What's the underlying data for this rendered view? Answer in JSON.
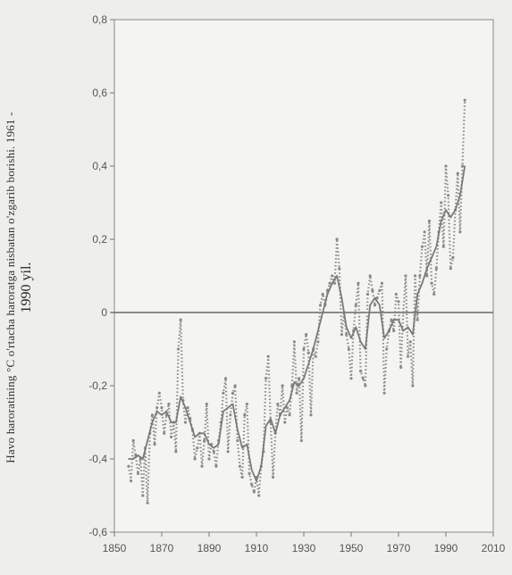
{
  "chart_data": {
    "type": "line",
    "title": "",
    "ylabel_line1": "Havo haroratining  °C o'rtacha haroratga nisbatan o'zgarib borishi. 1961 -",
    "ylabel_line2": "1990 yil.",
    "xlabel": "",
    "xlim": [
      1850,
      2010
    ],
    "ylim": [
      -0.6,
      0.8
    ],
    "x_ticks": [
      1850,
      1870,
      1890,
      1910,
      1930,
      1950,
      1970,
      1990,
      2010
    ],
    "x_tick_labels": [
      "1850",
      "1870",
      "1890",
      "1910",
      "1930",
      "1950",
      "1970",
      "1990",
      "2010"
    ],
    "y_ticks": [
      -0.6,
      -0.4,
      -0.2,
      0,
      0.2,
      0.4,
      0.6,
      0.8
    ],
    "y_tick_labels": [
      "-0,6",
      "-0,4",
      "-0,2",
      "0",
      "0,2",
      "0,4",
      "0,6",
      "0,8"
    ],
    "zero_line": 0,
    "grid": false,
    "series": [
      {
        "style": "dotted",
        "color": "#8a8a8a",
        "x": [
          1856,
          1857,
          1858,
          1859,
          1860,
          1861,
          1862,
          1863,
          1864,
          1865,
          1866,
          1867,
          1868,
          1869,
          1870,
          1871,
          1872,
          1873,
          1874,
          1875,
          1876,
          1877,
          1878,
          1879,
          1880,
          1881,
          1882,
          1883,
          1884,
          1885,
          1886,
          1887,
          1888,
          1889,
          1890,
          1891,
          1892,
          1893,
          1894,
          1895,
          1896,
          1897,
          1898,
          1899,
          1900,
          1901,
          1902,
          1903,
          1904,
          1905,
          1906,
          1907,
          1908,
          1909,
          1910,
          1911,
          1912,
          1913,
          1914,
          1915,
          1916,
          1917,
          1918,
          1919,
          1920,
          1921,
          1922,
          1923,
          1924,
          1925,
          1926,
          1927,
          1928,
          1929,
          1930,
          1931,
          1932,
          1933,
          1934,
          1935,
          1936,
          1937,
          1938,
          1939,
          1940,
          1941,
          1942,
          1943,
          1944,
          1945,
          1946,
          1947,
          1948,
          1949,
          1950,
          1951,
          1952,
          1953,
          1954,
          1955,
          1956,
          1957,
          1958,
          1959,
          1960,
          1961,
          1962,
          1963,
          1964,
          1965,
          1966,
          1967,
          1968,
          1969,
          1970,
          1971,
          1972,
          1973,
          1974,
          1975,
          1976,
          1977,
          1978,
          1979,
          1980,
          1981,
          1982,
          1983,
          1984,
          1985,
          1986,
          1987,
          1988,
          1989,
          1990,
          1991,
          1992,
          1993,
          1994,
          1995,
          1996,
          1997,
          1998
        ],
        "y": [
          -0.42,
          -0.46,
          -0.35,
          -0.39,
          -0.44,
          -0.4,
          -0.5,
          -0.37,
          -0.52,
          -0.33,
          -0.28,
          -0.36,
          -0.26,
          -0.22,
          -0.26,
          -0.33,
          -0.28,
          -0.25,
          -0.34,
          -0.3,
          -0.38,
          -0.1,
          -0.02,
          -0.24,
          -0.3,
          -0.26,
          -0.29,
          -0.32,
          -0.4,
          -0.37,
          -0.33,
          -0.42,
          -0.35,
          -0.25,
          -0.4,
          -0.36,
          -0.38,
          -0.42,
          -0.35,
          -0.3,
          -0.22,
          -0.18,
          -0.38,
          -0.28,
          -0.22,
          -0.2,
          -0.35,
          -0.42,
          -0.45,
          -0.28,
          -0.25,
          -0.44,
          -0.47,
          -0.49,
          -0.45,
          -0.5,
          -0.42,
          -0.38,
          -0.18,
          -0.12,
          -0.3,
          -0.45,
          -0.33,
          -0.25,
          -0.28,
          -0.2,
          -0.3,
          -0.26,
          -0.28,
          -0.2,
          -0.08,
          -0.22,
          -0.18,
          -0.35,
          -0.1,
          -0.06,
          -0.11,
          -0.28,
          -0.1,
          -0.12,
          -0.08,
          0.02,
          0.05,
          0.02,
          0.06,
          0.08,
          0.1,
          0.08,
          0.2,
          0.12,
          -0.06,
          0.0,
          -0.06,
          -0.1,
          -0.18,
          -0.05,
          0.02,
          0.08,
          -0.16,
          -0.18,
          -0.2,
          0.05,
          0.1,
          0.06,
          0.02,
          0.04,
          0.06,
          0.08,
          -0.22,
          -0.1,
          -0.05,
          -0.02,
          -0.05,
          0.05,
          0.03,
          -0.15,
          0.0,
          0.1,
          -0.12,
          -0.08,
          -0.2,
          0.1,
          -0.02,
          0.1,
          0.18,
          0.22,
          0.1,
          0.25,
          0.08,
          0.05,
          0.12,
          0.22,
          0.3,
          0.18,
          0.4,
          0.32,
          0.12,
          0.15,
          0.28,
          0.38,
          0.22,
          0.4,
          0.58
        ]
      },
      {
        "style": "solid",
        "color": "#7a7a7a",
        "x": [
          1856,
          1858,
          1860,
          1862,
          1864,
          1866,
          1868,
          1870,
          1872,
          1874,
          1876,
          1878,
          1880,
          1882,
          1884,
          1886,
          1888,
          1890,
          1892,
          1894,
          1896,
          1898,
          1900,
          1902,
          1904,
          1906,
          1908,
          1910,
          1912,
          1914,
          1916,
          1918,
          1920,
          1922,
          1924,
          1926,
          1928,
          1930,
          1932,
          1934,
          1936,
          1938,
          1940,
          1942,
          1944,
          1946,
          1948,
          1950,
          1952,
          1954,
          1956,
          1958,
          1960,
          1962,
          1964,
          1966,
          1968,
          1970,
          1972,
          1974,
          1976,
          1978,
          1980,
          1982,
          1984,
          1986,
          1988,
          1990,
          1992,
          1994,
          1996,
          1998
        ],
        "y": [
          -0.4,
          -0.4,
          -0.39,
          -0.4,
          -0.35,
          -0.3,
          -0.27,
          -0.28,
          -0.27,
          -0.3,
          -0.3,
          -0.23,
          -0.26,
          -0.3,
          -0.34,
          -0.33,
          -0.33,
          -0.36,
          -0.37,
          -0.36,
          -0.27,
          -0.26,
          -0.25,
          -0.32,
          -0.37,
          -0.36,
          -0.43,
          -0.46,
          -0.42,
          -0.31,
          -0.29,
          -0.33,
          -0.28,
          -0.26,
          -0.24,
          -0.19,
          -0.2,
          -0.18,
          -0.14,
          -0.1,
          -0.05,
          0.0,
          0.05,
          0.08,
          0.1,
          0.04,
          -0.04,
          -0.07,
          -0.04,
          -0.08,
          -0.1,
          0.02,
          0.04,
          0.02,
          -0.07,
          -0.05,
          -0.02,
          -0.02,
          -0.05,
          -0.04,
          -0.06,
          0.05,
          0.08,
          0.12,
          0.15,
          0.18,
          0.25,
          0.28,
          0.26,
          0.28,
          0.32,
          0.4
        ]
      }
    ]
  }
}
